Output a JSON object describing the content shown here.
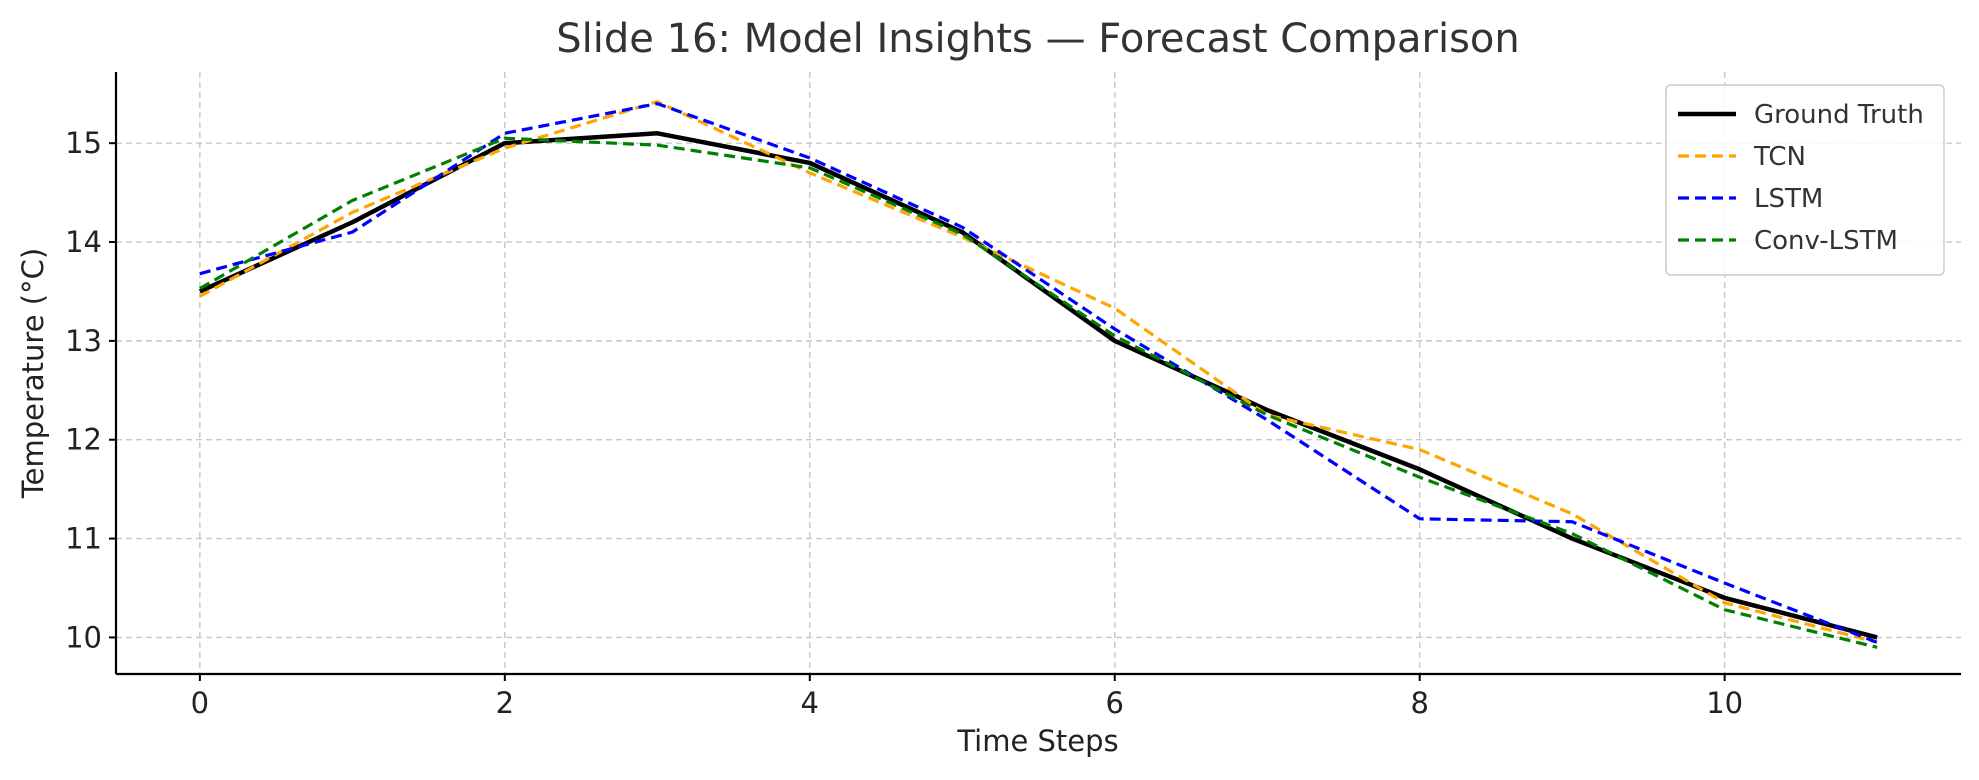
{
  "chart_data": {
    "type": "line",
    "title": "Slide 16: Model Insights — Forecast Comparison",
    "xlabel": "Time Steps",
    "ylabel": "Temperature (°C)",
    "x": [
      0,
      1,
      2,
      3,
      4,
      5,
      6,
      7,
      8,
      9,
      10,
      11
    ],
    "xlim": [
      -0.55,
      11.55
    ],
    "ylim": [
      9.63,
      15.72
    ],
    "xticks": [
      0,
      2,
      4,
      6,
      8,
      10
    ],
    "yticks": [
      10,
      11,
      12,
      13,
      14,
      15
    ],
    "grid": true,
    "legend_position": "top-right",
    "series": [
      {
        "name": "Ground Truth",
        "color": "#000000",
        "style": "solid",
        "values": [
          13.5,
          14.2,
          15.0,
          15.1,
          14.8,
          14.1,
          13.0,
          12.3,
          11.7,
          11.0,
          10.4,
          10.0
        ]
      },
      {
        "name": "TCN",
        "color": "#FFA500",
        "style": "dashed",
        "values": [
          13.45,
          14.3,
          14.95,
          15.42,
          14.7,
          14.05,
          13.33,
          12.25,
          11.9,
          11.25,
          10.35,
          9.95
        ]
      },
      {
        "name": "LSTM",
        "color": "#0000FF",
        "style": "dashed",
        "values": [
          13.68,
          14.1,
          15.1,
          15.4,
          14.85,
          14.15,
          13.12,
          12.2,
          11.2,
          11.17,
          10.55,
          9.95
        ]
      },
      {
        "name": "Conv-LSTM",
        "color": "#008000",
        "style": "dashed",
        "values": [
          13.53,
          14.42,
          15.05,
          14.98,
          14.75,
          14.08,
          13.05,
          12.25,
          11.62,
          11.05,
          10.28,
          9.9
        ]
      }
    ]
  }
}
